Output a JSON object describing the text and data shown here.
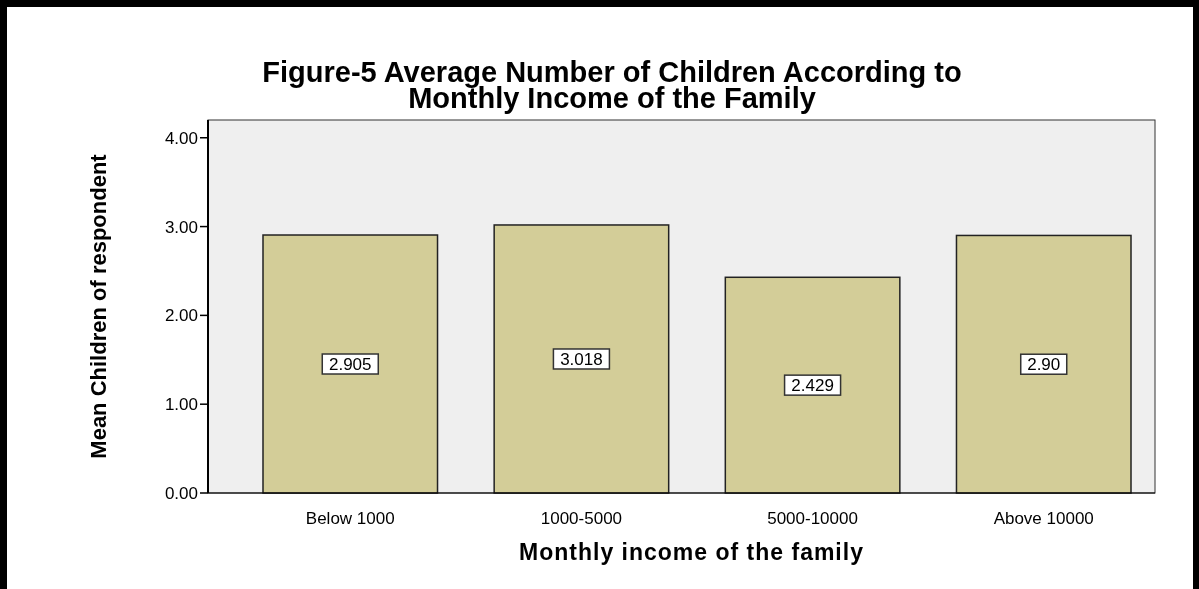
{
  "chart_data": {
    "type": "bar",
    "title": "Figure-5 Average Number of Children According to\nMonthly Income of the Family",
    "xlabel": "Monthly income of the family",
    "ylabel": "Mean Children of respondent",
    "categories": [
      "Below 1000",
      "1000-5000",
      "5000-10000",
      "Above 10000"
    ],
    "values": [
      2.905,
      3.018,
      2.429,
      2.9
    ],
    "value_labels": [
      "2.905",
      "3.018",
      "2.429",
      "2.90"
    ],
    "color": "#d3cd98",
    "ylim": [
      0,
      4.2
    ],
    "yticks": [
      {
        "value": 0,
        "label": "0.00"
      },
      {
        "value": 1,
        "label": "1.00"
      },
      {
        "value": 2,
        "label": "2.00"
      },
      {
        "value": 3,
        "label": "3.00"
      },
      {
        "value": 4,
        "label": "4.00"
      }
    ],
    "grid": false
  }
}
